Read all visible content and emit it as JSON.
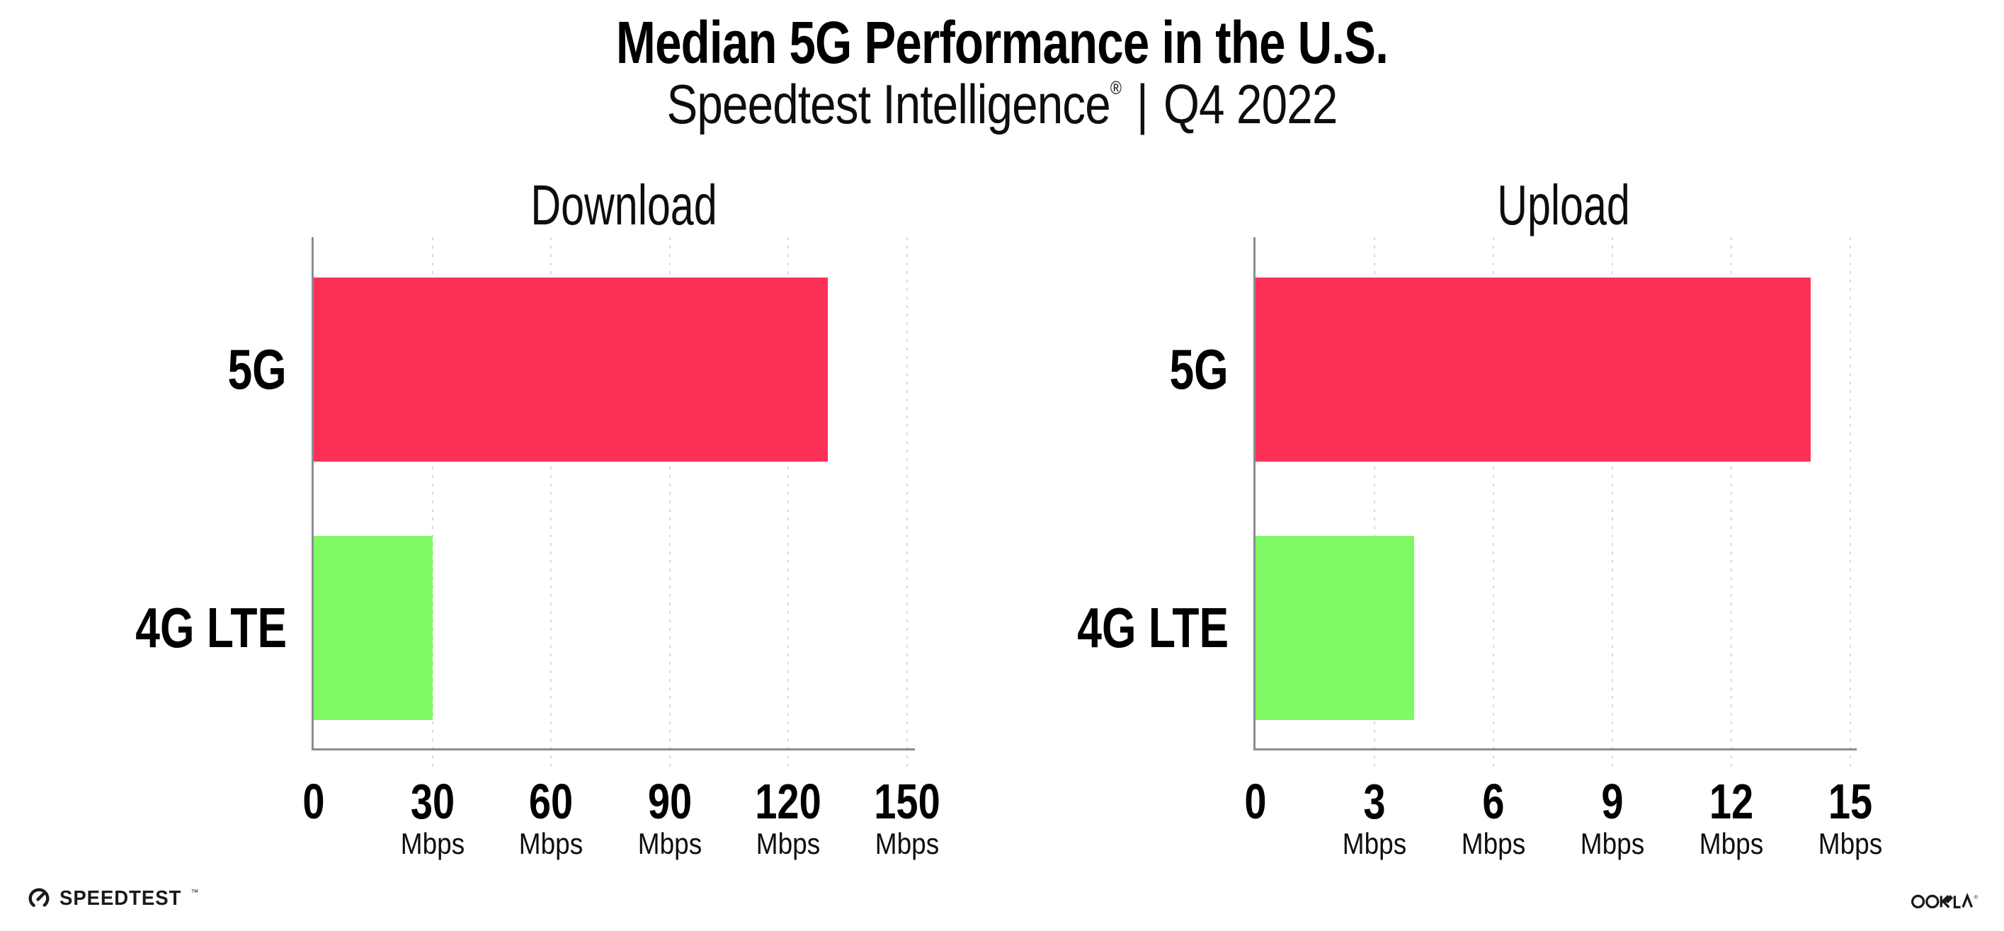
{
  "header": {
    "title": "Median 5G Performance in the U.S.",
    "subtitle_brand": "Speedtest Intelligence",
    "subtitle_reg": "®",
    "subtitle_sep": "|",
    "subtitle_period": "Q4 2022"
  },
  "chart_data": [
    {
      "type": "bar",
      "orientation": "horizontal",
      "title": "Download",
      "categories": [
        "5G",
        "4G LTE"
      ],
      "values": [
        130,
        30
      ],
      "unit": "Mbps",
      "xlim": [
        0,
        150
      ],
      "xticks": [
        0,
        30,
        60,
        90,
        120,
        150
      ],
      "bar_colors": [
        "#FC3056",
        "#7FFA64"
      ],
      "grid": "dotted-vertical",
      "legend": "none"
    },
    {
      "type": "bar",
      "orientation": "horizontal",
      "title": "Upload",
      "categories": [
        "5G",
        "4G LTE"
      ],
      "values": [
        14,
        4
      ],
      "unit": "Mbps",
      "xlim": [
        0,
        15
      ],
      "xticks": [
        0,
        3,
        6,
        9,
        12,
        15
      ],
      "bar_colors": [
        "#FC3056",
        "#7FFA64"
      ],
      "grid": "dotted-vertical",
      "legend": "none"
    }
  ],
  "footer": {
    "speedtest_label": "SPEEDTEST",
    "speedtest_tm": "™",
    "ookla_label": "OOKLA",
    "ookla_reg": "®"
  },
  "colors": {
    "bar_5g": "#FC3056",
    "bar_4g": "#7FFA64",
    "axis": "#8C8C96",
    "grid": "#D8D8E0",
    "text": "#000000"
  }
}
